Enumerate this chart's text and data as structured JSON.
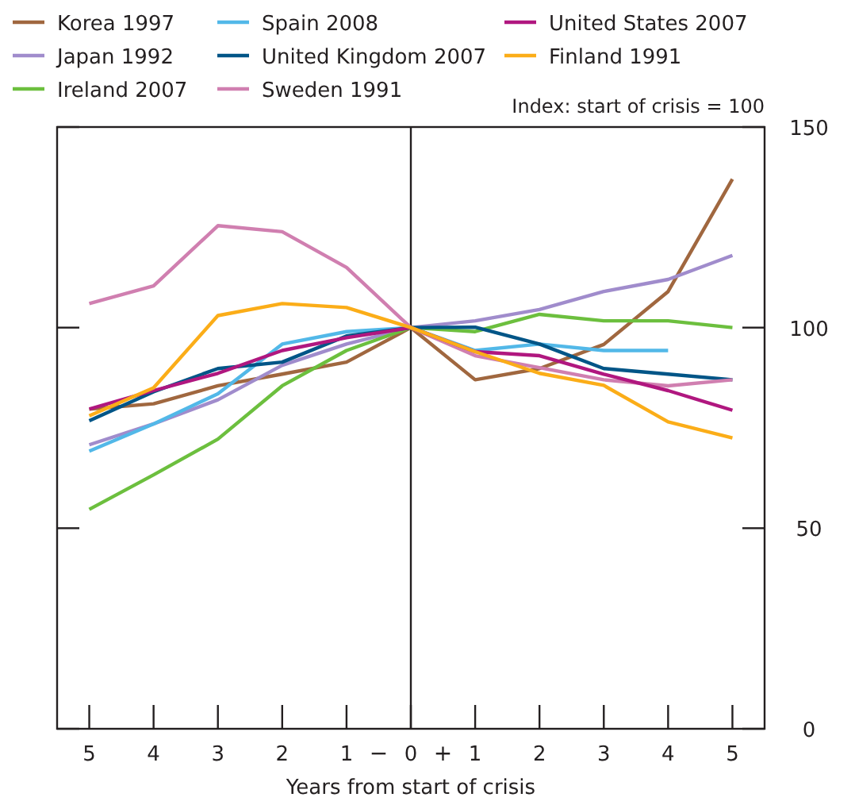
{
  "chart_data": {
    "type": "line",
    "xlabel": "Years from start of crisis",
    "ylabel": "Index:  start of crisis = 100",
    "x": [
      -5,
      -4,
      -3,
      -2,
      -1,
      0,
      1,
      2,
      3,
      4,
      5
    ],
    "series": [
      {
        "name": "Korea 1997",
        "color": "#a0673f",
        "values": [
          79.7,
          81,
          85.5,
          88.4,
          91.4,
          100,
          87,
          89.8,
          95.8,
          109,
          137
        ]
      },
      {
        "name": "Japan 1992",
        "color": "#a08ccc",
        "values": [
          70.8,
          76,
          82,
          90.6,
          95.9,
          100,
          101.7,
          104.5,
          109,
          112,
          118
        ]
      },
      {
        "name": "Ireland 2007",
        "color": "#6cbf3e",
        "values": [
          54.7,
          63.3,
          72.2,
          85.5,
          94.3,
          100,
          99,
          103.3,
          101.7,
          101.7,
          100
        ]
      },
      {
        "name": "Spain 2008",
        "color": "#52b8e8",
        "values": [
          69.2,
          76,
          83.5,
          95.9,
          99,
          100,
          94.3,
          95.9,
          94.3,
          94.3,
          null
        ]
      },
      {
        "name": "United Kingdom 2007",
        "color": "#005587",
        "values": [
          76.8,
          84,
          89.8,
          91.4,
          97.9,
          100,
          100.1,
          95.9,
          89.8,
          88.4,
          87
        ]
      },
      {
        "name": "Sweden 1991",
        "color": "#d07fb0",
        "values": [
          106,
          110.4,
          125.4,
          123.9,
          115,
          100,
          93,
          90,
          87,
          85.5,
          87
        ]
      },
      {
        "name": "United States 2007",
        "color": "#b0177f",
        "values": [
          79.7,
          84.3,
          88.6,
          94.3,
          97.5,
          100,
          94,
          93,
          88.4,
          84.3,
          79.4
        ]
      },
      {
        "name": "Finland 1991",
        "color": "#fbad18",
        "values": [
          78,
          85,
          103,
          106,
          105,
          100,
          94,
          88.6,
          85.6,
          76.5,
          72.5
        ]
      }
    ],
    "xlim": [
      -5.5,
      5.5
    ],
    "xticks": [
      {
        "value": -5,
        "label": "5"
      },
      {
        "value": -4,
        "label": "4"
      },
      {
        "value": -3,
        "label": "3"
      },
      {
        "value": -2,
        "label": "2"
      },
      {
        "value": -1,
        "label": "1"
      },
      0,
      1,
      2,
      3,
      4,
      5
    ],
    "ylim": [
      0,
      150
    ],
    "yticks": [
      0,
      50,
      100,
      150
    ],
    "ref_lines": [
      {
        "axis": "x",
        "value": 0,
        "color": "#231f20"
      }
    ],
    "annotations": [
      "−",
      "+"
    ],
    "grid": false,
    "legend": "top",
    "line_style": "solid",
    "marker": "none"
  }
}
